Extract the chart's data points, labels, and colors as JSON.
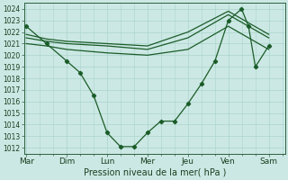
{
  "title": "Pression niveau de la mer( hPa )",
  "bg_color": "#cce8e4",
  "grid_color": "#aad4cc",
  "line_color": "#1a5c28",
  "ylim": [
    1011.5,
    1024.5
  ],
  "yticks": [
    1012,
    1013,
    1014,
    1015,
    1016,
    1017,
    1018,
    1019,
    1020,
    1021,
    1022,
    1023,
    1024
  ],
  "day_labels": [
    "Mar",
    "Dim",
    "Lun",
    "Mer",
    "Jeu",
    "Ven",
    "Sam"
  ],
  "day_positions": [
    0,
    1,
    2,
    3,
    4,
    5,
    6
  ],
  "xlim": [
    -0.05,
    6.4
  ],
  "detailed_x": [
    0,
    0.5,
    1.0,
    1.33,
    1.67,
    2.0,
    2.33,
    2.67,
    3.0,
    3.33,
    3.67,
    4.0,
    4.33,
    4.67,
    5.0,
    5.33,
    5.5,
    5.67,
    6.0
  ],
  "detailed_y": [
    1022.5,
    1021.0,
    1019.5,
    1018.5,
    1016.5,
    1013.3,
    1012.1,
    1012.1,
    1013.3,
    1014.3,
    1014.3,
    1015.8,
    1017.5,
    1019.5,
    1023.0,
    1024.0,
    1022.5,
    1019.0,
    1020.8
  ],
  "smooth1_x": [
    0,
    0.5,
    1.0,
    2.0,
    3.0,
    4.0,
    5.0,
    6.0
  ],
  "smooth1_y": [
    1021.0,
    1020.8,
    1020.5,
    1020.2,
    1020.0,
    1020.5,
    1022.5,
    1020.5
  ],
  "smooth2_x": [
    0,
    0.5,
    1.0,
    2.0,
    3.0,
    4.0,
    5.0,
    6.0
  ],
  "smooth2_y": [
    1021.5,
    1021.2,
    1021.0,
    1020.8,
    1020.5,
    1021.5,
    1023.5,
    1021.5
  ],
  "smooth3_x": [
    0,
    0.5,
    1.0,
    2.0,
    3.0,
    4.0,
    5.0,
    6.0
  ],
  "smooth3_y": [
    1021.8,
    1021.4,
    1021.2,
    1021.0,
    1020.8,
    1022.0,
    1023.8,
    1021.8
  ]
}
